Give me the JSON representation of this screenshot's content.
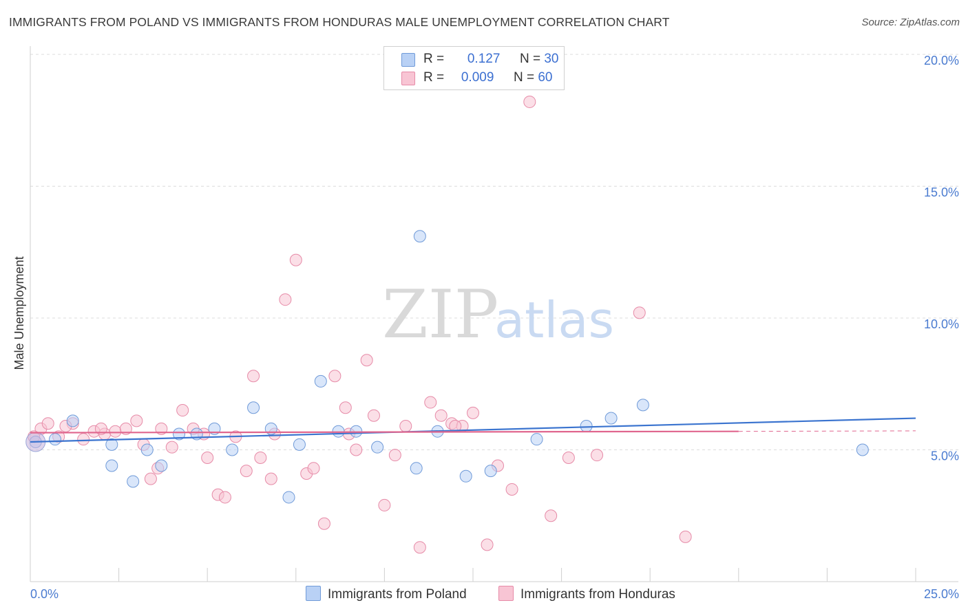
{
  "title": "IMMIGRANTS FROM POLAND VS IMMIGRANTS FROM HONDURAS MALE UNEMPLOYMENT CORRELATION CHART",
  "source": "Source: ZipAtlas.com",
  "watermark": {
    "zip": "ZIP",
    "atlas": "atlas"
  },
  "legend": {
    "poland": {
      "r_label": "R =",
      "r_value": "0.127",
      "n_label": "N =",
      "n_value": "30"
    },
    "honduras": {
      "r_label": "R =",
      "r_value": "0.009",
      "n_label": "N =",
      "n_value": "60"
    }
  },
  "bottom_legend": {
    "poland": "Immigrants from Poland",
    "honduras": "Immigrants from Honduras"
  },
  "colors": {
    "poland_fill": "#b9d1f5",
    "poland_stroke": "#6f9ad8",
    "poland_line": "#3b74cf",
    "honduras_fill": "#f8c5d4",
    "honduras_stroke": "#e68aa7",
    "honduras_line": "#e0668e",
    "grid": "#dcdcdc",
    "tick_text": "#4a7bd0"
  },
  "chart_data": {
    "type": "scatter",
    "title": "IMMIGRANTS FROM POLAND VS IMMIGRANTS FROM HONDURAS MALE UNEMPLOYMENT CORRELATION CHART",
    "xlabel": "",
    "ylabel": "Male Unemployment",
    "xlim": [
      0,
      25
    ],
    "ylim": [
      0,
      20.5
    ],
    "x_tick_labels": [
      "0.0%",
      "25.0%"
    ],
    "y_ticks": [
      5,
      10,
      15,
      20
    ],
    "y_tick_labels": [
      "5.0%",
      "10.0%",
      "15.0%",
      "20.0%"
    ],
    "series": [
      {
        "name": "Immigrants from Poland",
        "points": [
          [
            0.15,
            5.3
          ],
          [
            0.7,
            5.4
          ],
          [
            1.2,
            6.1
          ],
          [
            2.3,
            5.2
          ],
          [
            2.3,
            4.4
          ],
          [
            2.9,
            3.8
          ],
          [
            3.3,
            5.0
          ],
          [
            3.7,
            4.4
          ],
          [
            4.2,
            5.6
          ],
          [
            4.7,
            5.6
          ],
          [
            5.2,
            5.8
          ],
          [
            5.7,
            5.0
          ],
          [
            6.3,
            6.6
          ],
          [
            6.8,
            5.8
          ],
          [
            7.3,
            3.2
          ],
          [
            7.6,
            5.2
          ],
          [
            8.2,
            7.6
          ],
          [
            8.7,
            5.7
          ],
          [
            9.2,
            5.7
          ],
          [
            9.8,
            5.1
          ],
          [
            10.9,
            4.3
          ],
          [
            11.5,
            5.7
          ],
          [
            12.3,
            4.0
          ],
          [
            13.0,
            4.2
          ],
          [
            14.3,
            5.4
          ],
          [
            15.7,
            5.9
          ],
          [
            16.4,
            6.2
          ],
          [
            17.3,
            6.7
          ],
          [
            23.5,
            5.0
          ],
          [
            11.0,
            13.1
          ]
        ],
        "trend": {
          "x": [
            0,
            25
          ],
          "y": [
            5.3,
            6.2
          ]
        }
      },
      {
        "name": "Immigrants from Honduras",
        "points": [
          [
            0.3,
            5.8
          ],
          [
            0.5,
            6.0
          ],
          [
            0.8,
            5.5
          ],
          [
            1.2,
            6.0
          ],
          [
            1.5,
            5.4
          ],
          [
            1.8,
            5.7
          ],
          [
            2.1,
            5.6
          ],
          [
            2.4,
            5.7
          ],
          [
            2.7,
            5.8
          ],
          [
            3.0,
            6.1
          ],
          [
            3.2,
            5.2
          ],
          [
            3.4,
            3.9
          ],
          [
            3.7,
            5.8
          ],
          [
            4.0,
            5.1
          ],
          [
            4.3,
            6.5
          ],
          [
            4.6,
            5.8
          ],
          [
            5.0,
            4.7
          ],
          [
            5.3,
            3.3
          ],
          [
            5.5,
            3.2
          ],
          [
            5.8,
            5.5
          ],
          [
            6.1,
            4.2
          ],
          [
            6.3,
            7.8
          ],
          [
            6.5,
            4.7
          ],
          [
            6.8,
            3.9
          ],
          [
            7.2,
            10.7
          ],
          [
            7.5,
            12.2
          ],
          [
            7.8,
            4.1
          ],
          [
            8.0,
            4.3
          ],
          [
            8.3,
            2.2
          ],
          [
            8.6,
            7.8
          ],
          [
            8.9,
            6.6
          ],
          [
            9.2,
            5.0
          ],
          [
            9.5,
            8.4
          ],
          [
            9.7,
            6.3
          ],
          [
            10.0,
            2.9
          ],
          [
            10.3,
            4.8
          ],
          [
            10.6,
            5.9
          ],
          [
            11.0,
            1.3
          ],
          [
            11.3,
            6.8
          ],
          [
            11.6,
            6.3
          ],
          [
            11.9,
            6.0
          ],
          [
            12.2,
            5.9
          ],
          [
            12.5,
            6.4
          ],
          [
            12.9,
            1.4
          ],
          [
            13.2,
            4.4
          ],
          [
            13.6,
            3.5
          ],
          [
            14.1,
            18.2
          ],
          [
            14.7,
            2.5
          ],
          [
            15.2,
            4.7
          ],
          [
            16.0,
            4.8
          ],
          [
            17.2,
            10.2
          ],
          [
            18.5,
            1.7
          ],
          [
            2.0,
            5.8
          ],
          [
            4.9,
            5.6
          ],
          [
            3.6,
            4.3
          ],
          [
            1.0,
            5.9
          ],
          [
            0.1,
            5.5
          ],
          [
            6.9,
            5.6
          ],
          [
            12.0,
            5.9
          ],
          [
            9.0,
            5.6
          ]
        ],
        "trend": {
          "x": [
            0,
            20
          ],
          "y": [
            5.65,
            5.7
          ],
          "dashed_extension": {
            "x": [
              20,
              25
            ],
            "y": [
              5.7,
              5.72
            ]
          }
        }
      }
    ],
    "grid": true,
    "legend_position": "top-center"
  }
}
